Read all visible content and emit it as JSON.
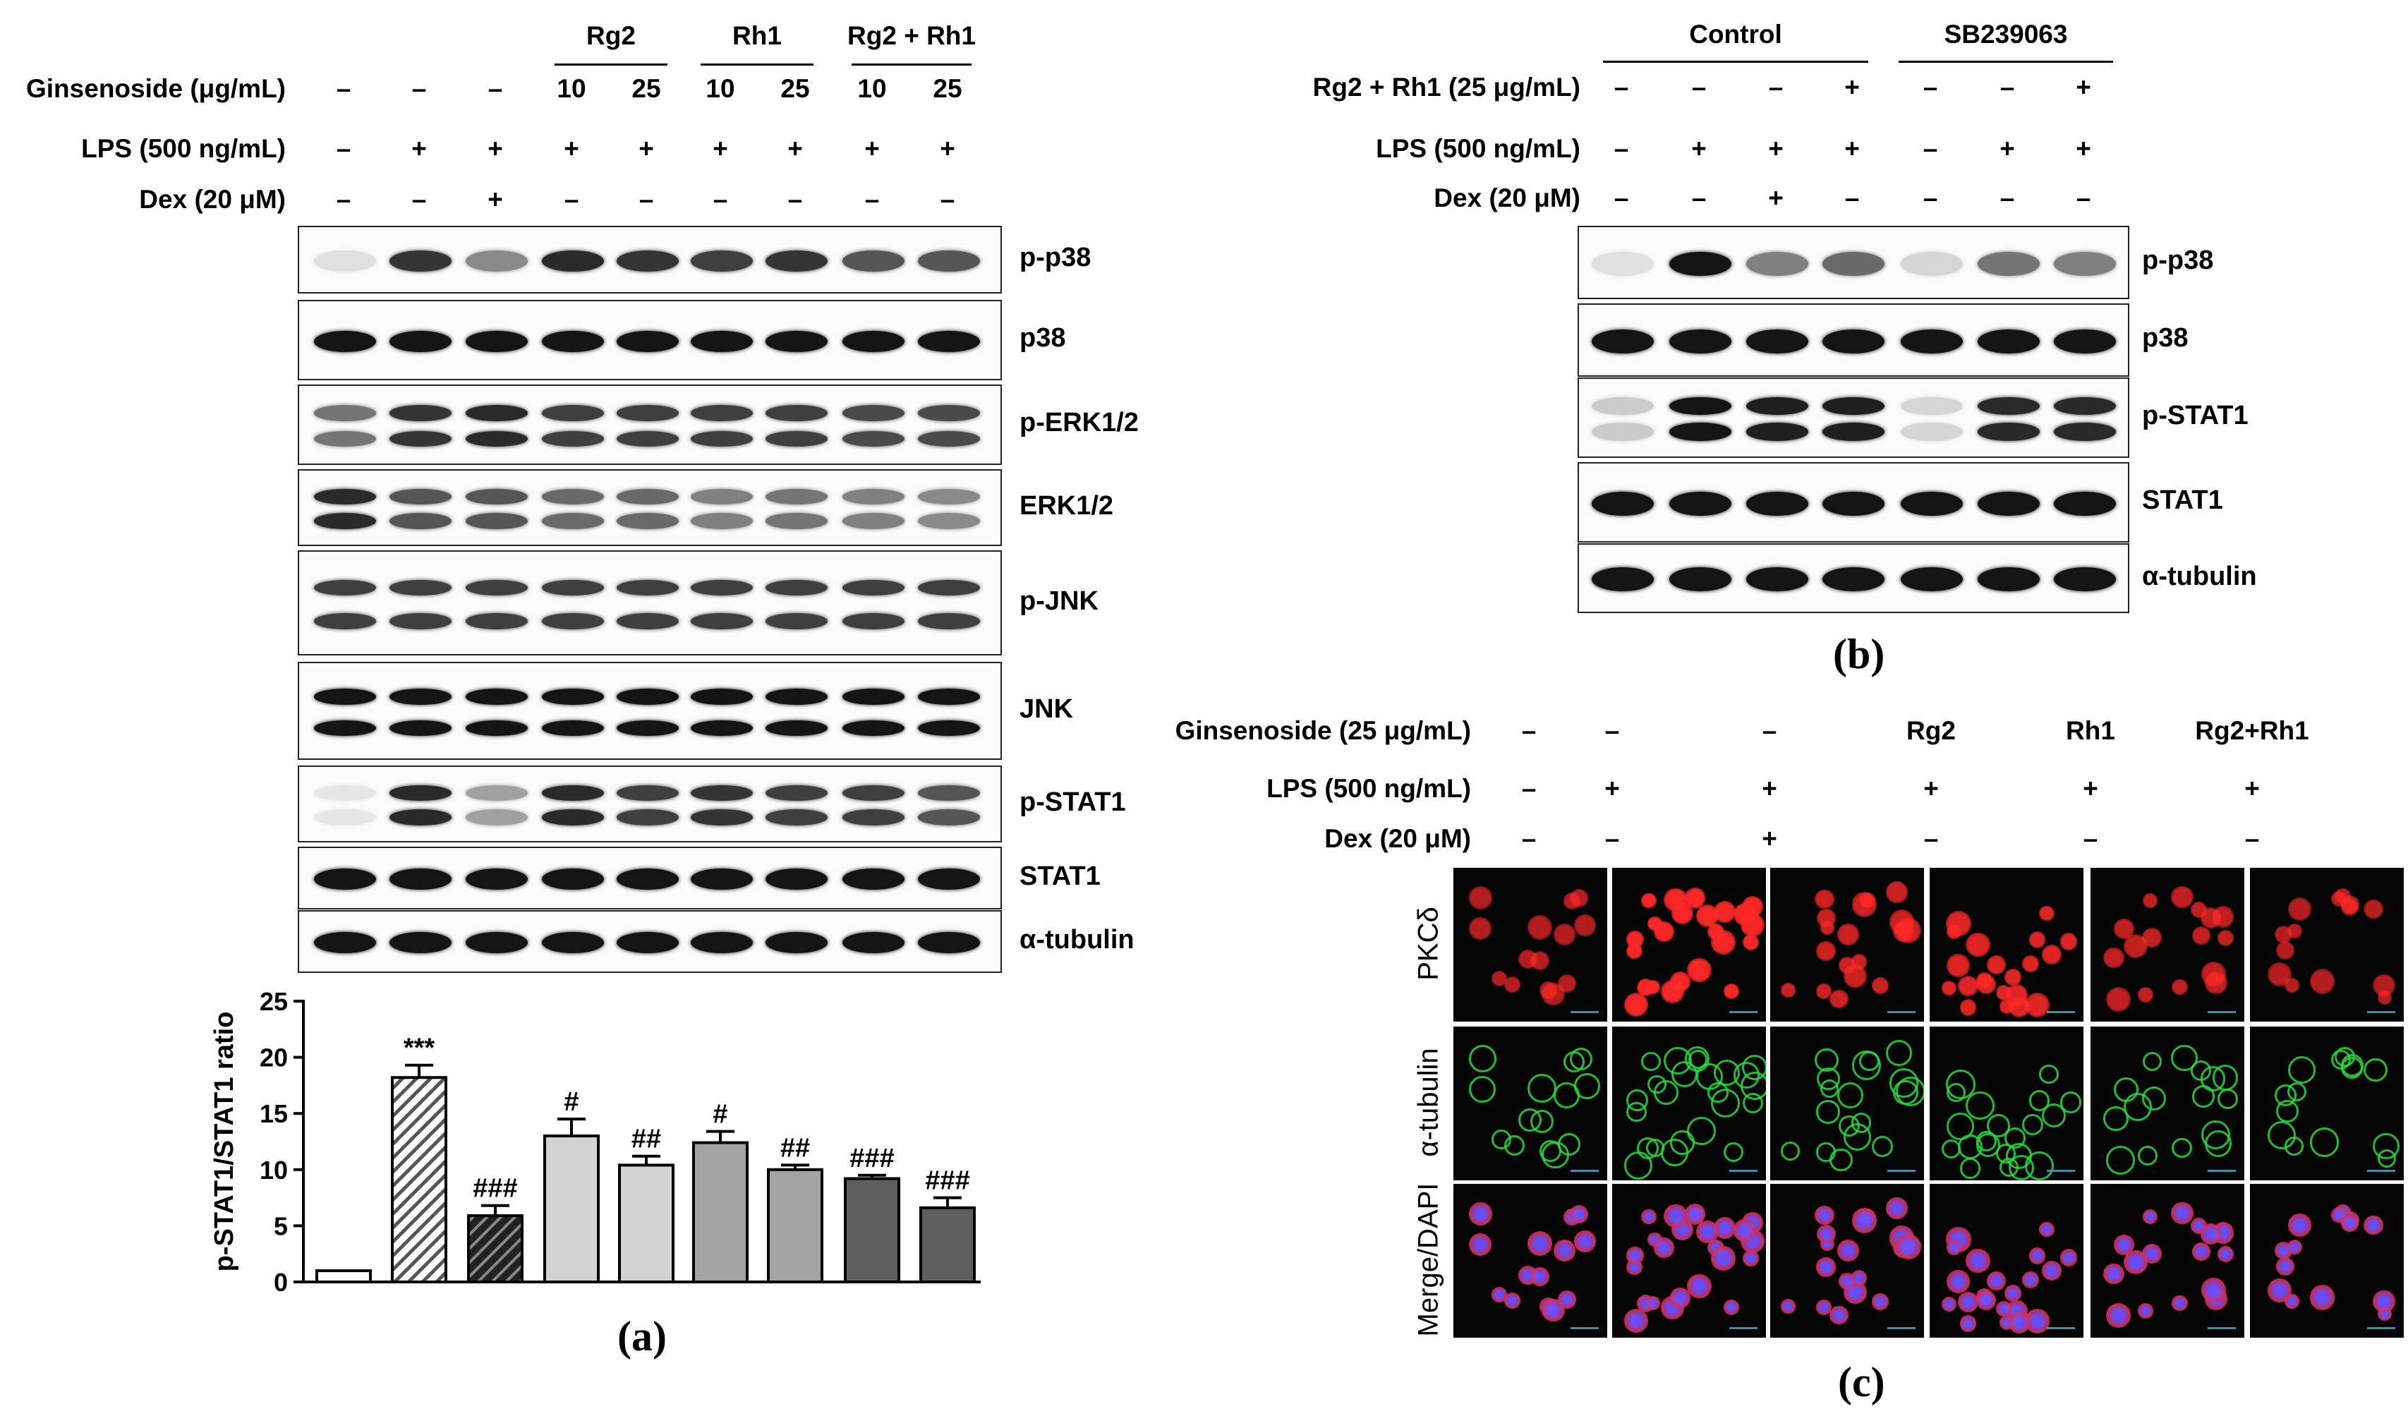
{
  "panel_a": {
    "group_headers": [
      "Rg2",
      "Rh1",
      "Rg2 + Rh1"
    ],
    "treatment_rows": [
      {
        "label": "Ginsenoside (μg/mL)",
        "values": [
          "–",
          "–",
          "–",
          "10",
          "25",
          "10",
          "25",
          "10",
          "25"
        ]
      },
      {
        "label": "LPS (500  ng/mL)",
        "values": [
          "–",
          "+",
          "+",
          "+",
          "+",
          "+",
          "+",
          "+",
          "+"
        ]
      },
      {
        "label": "Dex (20 μM)",
        "values": [
          "–",
          "–",
          "+",
          "–",
          "–",
          "–",
          "–",
          "–",
          "–"
        ]
      }
    ],
    "blots": [
      {
        "label": "p-p38",
        "intensity": [
          0.05,
          0.85,
          0.45,
          0.9,
          0.85,
          0.8,
          0.85,
          0.7,
          0.7
        ]
      },
      {
        "label": "p38",
        "intensity": [
          1,
          1,
          1,
          1,
          1,
          1,
          1,
          1,
          1
        ]
      },
      {
        "label": "p-ERK1/2",
        "intensity": [
          0.55,
          0.85,
          0.9,
          0.8,
          0.8,
          0.8,
          0.8,
          0.75,
          0.75
        ]
      },
      {
        "label": "ERK1/2",
        "intensity": [
          0.9,
          0.7,
          0.7,
          0.6,
          0.6,
          0.5,
          0.55,
          0.5,
          0.45
        ]
      },
      {
        "label": "p-JNK",
        "intensity": [
          0.8,
          0.8,
          0.8,
          0.8,
          0.8,
          0.8,
          0.8,
          0.8,
          0.8
        ]
      },
      {
        "label": "JNK",
        "intensity": [
          1,
          1,
          1,
          1,
          1,
          1,
          1,
          1,
          1
        ]
      },
      {
        "label": "p-STAT1",
        "intensity": [
          0.02,
          0.9,
          0.35,
          0.9,
          0.8,
          0.85,
          0.8,
          0.8,
          0.7
        ]
      },
      {
        "label": "STAT1",
        "intensity": [
          1,
          1,
          1,
          1,
          1,
          1,
          1,
          1,
          1
        ]
      },
      {
        "label": "α-tubulin",
        "intensity": [
          1,
          1,
          1,
          1,
          1,
          1,
          1,
          1,
          1
        ]
      }
    ],
    "letter": "(a)"
  },
  "chart_data": {
    "type": "bar",
    "ylabel": "p-STAT1/STAT1 ratio",
    "ylim": [
      0,
      25
    ],
    "yticks": [
      "0",
      "5",
      "10",
      "15",
      "20",
      "25"
    ],
    "values": [
      1,
      18.2,
      5.9,
      13,
      10.4,
      12.4,
      10,
      9.2,
      6.6
    ],
    "errors": [
      0,
      1.1,
      0.9,
      1.5,
      0.8,
      1.0,
      0.4,
      0.3,
      0.9
    ],
    "annotations": [
      "",
      "***",
      "###",
      "#",
      "##",
      "#",
      "##",
      "###",
      "###"
    ],
    "bar_colors": [
      "#ffffff",
      "hatch-light",
      "hatch-dark",
      "#d3d3d3",
      "#d3d3d3",
      "#a3a3a3",
      "#a3a3a3",
      "#5e5e5e",
      "#5e5e5e"
    ]
  },
  "panel_b": {
    "group_headers": [
      "Control",
      "SB239063"
    ],
    "treatment_rows": [
      {
        "label": "Rg2 + Rh1 (25 μg/mL)",
        "values": [
          "–",
          "–",
          "–",
          "+",
          "–",
          "–",
          "+"
        ]
      },
      {
        "label": "LPS (500  ng/mL)",
        "values": [
          "–",
          "+",
          "+",
          "+",
          "–",
          "+",
          "+"
        ]
      },
      {
        "label": "Dex (20 μM)",
        "values": [
          "–",
          "–",
          "+",
          "–",
          "–",
          "–",
          "–"
        ]
      }
    ],
    "blots": [
      {
        "label": "p-p38",
        "intensity": [
          0.05,
          1,
          0.5,
          0.6,
          0.1,
          0.55,
          0.5
        ]
      },
      {
        "label": "p38",
        "intensity": [
          1,
          1,
          1,
          1,
          1,
          1,
          1
        ]
      },
      {
        "label": "p-STAT1",
        "intensity": [
          0.15,
          1,
          0.95,
          0.95,
          0.1,
          0.9,
          0.9
        ]
      },
      {
        "label": "STAT1",
        "intensity": [
          1,
          1,
          1,
          1,
          1,
          1,
          1
        ]
      },
      {
        "label": "α-tubulin",
        "intensity": [
          1,
          1,
          1,
          1,
          1,
          1,
          1
        ]
      }
    ],
    "letter": "(b)"
  },
  "panel_c": {
    "column_headers": [
      "Rg2",
      "Rh1",
      "Rg2+Rh1"
    ],
    "treatment_rows": [
      {
        "label": "Ginsenoside (25 μg/mL)",
        "values": [
          "–",
          "–",
          "–",
          "Rg2",
          "Rh1",
          "Rg2+Rh1"
        ]
      },
      {
        "label": "LPS (500  ng/mL)",
        "values": [
          "–",
          "+",
          "+",
          "+",
          "+",
          "+"
        ]
      },
      {
        "label": "Dex (20 μM)",
        "values": [
          "–",
          "–",
          "+",
          "–",
          "–",
          "–"
        ]
      }
    ],
    "image_rows": [
      "PKCδ",
      "α-tubulin",
      "Merge/DAPI"
    ],
    "letter": "(c)"
  }
}
